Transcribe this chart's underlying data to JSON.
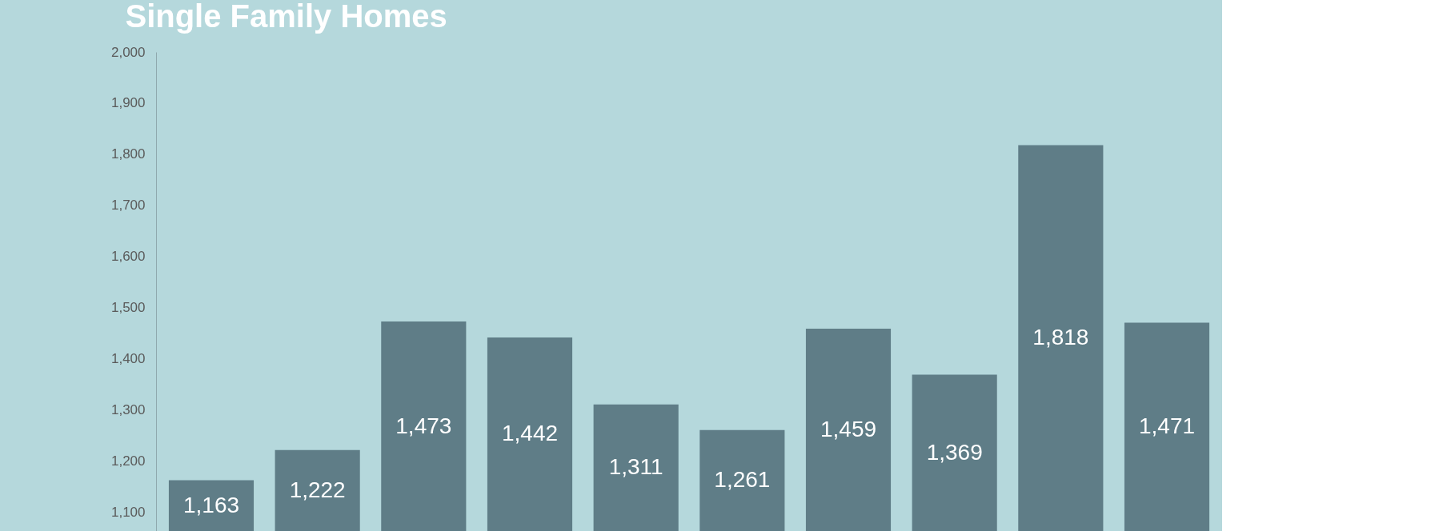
{
  "chart_data": {
    "type": "bar",
    "title": "Single Family Homes",
    "categories": [
      null,
      null,
      null,
      null,
      null,
      null,
      null,
      null,
      null,
      null
    ],
    "values": [
      1163,
      1222,
      1473,
      1442,
      1311,
      1261,
      1459,
      1369,
      1818,
      1471
    ],
    "color": "#5f7d87",
    "ylim": [
      1062,
      2000
    ],
    "yticks": [
      {
        "value": 1100,
        "label": "1,100"
      },
      {
        "value": 1200,
        "label": "1,200"
      },
      {
        "value": 1300,
        "label": "1,300"
      },
      {
        "value": 1400,
        "label": "1,400"
      },
      {
        "value": 1500,
        "label": "1,500"
      },
      {
        "value": 1600,
        "label": "1,600"
      },
      {
        "value": 1700,
        "label": "1,700"
      },
      {
        "value": 1800,
        "label": "1,800"
      },
      {
        "value": 1900,
        "label": "1,900"
      },
      {
        "value": 2000,
        "label": "2,000"
      }
    ],
    "value_labels": [
      "1,163",
      "1,222",
      "1,473",
      "1,442",
      "1,311",
      "1,261",
      "1,459",
      "1,369",
      "1,818",
      "1,471"
    ],
    "tick_labels": "y",
    "grid": false
  }
}
